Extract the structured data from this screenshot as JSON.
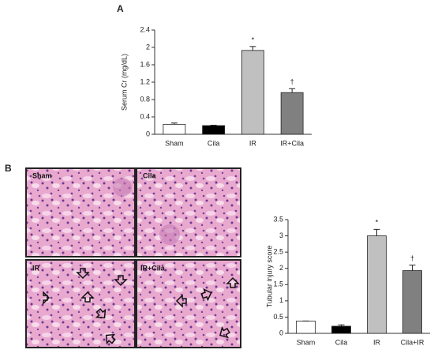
{
  "panel_labels": [
    "A",
    "B"
  ],
  "micrograph_labels": [
    "Sham",
    "Cila",
    "IR",
    "IR+Cila"
  ],
  "chart_data": [
    {
      "type": "bar",
      "y_label": "Serum Cr (mg/dL)",
      "categories": [
        "Sham",
        "Cila",
        "IR",
        "IR+Cila"
      ],
      "values": [
        0.23,
        0.2,
        1.93,
        0.96
      ],
      "errors": [
        0.03,
        0.01,
        0.09,
        0.09
      ],
      "annotations": [
        null,
        null,
        "*",
        "†"
      ],
      "colors": [
        "#ffffff",
        "#000000",
        "#c0c0c0",
        "#808080"
      ],
      "ylim": [
        0,
        2.4
      ],
      "yticks": [
        0,
        0.4,
        0.8,
        1.2,
        1.6,
        2,
        2.4
      ]
    },
    {
      "type": "bar",
      "y_label": "Tubular injury score",
      "categories": [
        "Sham",
        "Cila",
        "IR",
        "Cila+IR"
      ],
      "values": [
        0.38,
        0.22,
        3.0,
        1.93
      ],
      "errors": [
        0,
        0.04,
        0.2,
        0.17
      ],
      "annotations": [
        null,
        null,
        "*",
        "†"
      ],
      "colors": [
        "#ffffff",
        "#000000",
        "#c0c0c0",
        "#808080"
      ],
      "ylim": [
        0,
        3.5
      ],
      "yticks": [
        0,
        0.5,
        1,
        1.5,
        2,
        2.5,
        3,
        3.5
      ]
    }
  ]
}
